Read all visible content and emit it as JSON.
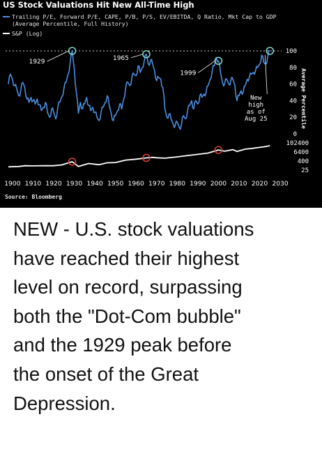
{
  "chart_data": {
    "type": "line",
    "title": "US Stock Valuations Hit New All-Time High",
    "legend": [
      {
        "label_line1": "Trailing P/E, Forward P/E, CAPE, P/B, P/S, EV/EBITDA, Q Ratio, Mkt Cap to GDP",
        "label_line2": "(Average Percentile, Full History)",
        "color": "#4a8fe0"
      },
      {
        "label_line1": "S&P (Log)",
        "label_line2": "",
        "color": "#ffffff"
      }
    ],
    "legend_position": "top-left",
    "x_ticks": [
      "1900",
      "1910",
      "1920",
      "1930",
      "1940",
      "1950",
      "1960",
      "1970",
      "1980",
      "1990",
      "2000",
      "2010",
      "2020",
      "2030"
    ],
    "xlim": [
      1898,
      2031
    ],
    "upper_ylim": [
      0,
      100
    ],
    "upper_yticks": [
      "100",
      "80",
      "60",
      "40",
      "20",
      "0"
    ],
    "upper_ylabel": "Average Percentile",
    "lower_yticks": [
      "102400",
      "6400",
      "400",
      "25"
    ],
    "lower_ylim": [
      10,
      200000
    ],
    "series": [
      {
        "name": "Average Percentile",
        "color": "#4a8fe0",
        "x": [
          1898,
          1899,
          1900,
          1901,
          1902,
          1903,
          1904,
          1905,
          1906,
          1907,
          1908,
          1909,
          1910,
          1911,
          1912,
          1913,
          1914,
          1915,
          1916,
          1917,
          1918,
          1919,
          1920,
          1921,
          1922,
          1923,
          1924,
          1925,
          1926,
          1927,
          1928,
          1929,
          1930,
          1931,
          1932,
          1933,
          1934,
          1935,
          1936,
          1937,
          1938,
          1939,
          1940,
          1941,
          1942,
          1943,
          1944,
          1945,
          1946,
          1947,
          1948,
          1949,
          1950,
          1951,
          1952,
          1953,
          1954,
          1955,
          1956,
          1957,
          1958,
          1959,
          1960,
          1961,
          1962,
          1963,
          1964,
          1965,
          1966,
          1967,
          1968,
          1969,
          1970,
          1971,
          1972,
          1973,
          1974,
          1975,
          1976,
          1977,
          1978,
          1979,
          1980,
          1981,
          1982,
          1983,
          1984,
          1985,
          1986,
          1987,
          1988,
          1989,
          1990,
          1991,
          1992,
          1993,
          1994,
          1995,
          1996,
          1997,
          1998,
          1999,
          2000,
          2001,
          2002,
          2003,
          2004,
          2005,
          2006,
          2007,
          2008,
          2009,
          2010,
          2011,
          2012,
          2013,
          2014,
          2015,
          2016,
          2017,
          2018,
          2019,
          2020,
          2021,
          2022,
          2023,
          2024,
          2025
        ],
        "values": [
          60,
          72,
          66,
          58,
          55,
          46,
          52,
          62,
          56,
          42,
          38,
          44,
          40,
          36,
          42,
          35,
          28,
          32,
          38,
          26,
          20,
          30,
          26,
          18,
          32,
          38,
          45,
          55,
          62,
          72,
          85,
          100,
          78,
          50,
          25,
          38,
          30,
          36,
          44,
          34,
          28,
          32,
          26,
          20,
          16,
          26,
          32,
          38,
          46,
          34,
          24,
          16,
          22,
          28,
          36,
          30,
          42,
          56,
          62,
          58,
          68,
          72,
          70,
          82,
          74,
          80,
          88,
          96,
          84,
          88,
          85,
          76,
          64,
          68,
          66,
          56,
          30,
          20,
          24,
          18,
          12,
          10,
          14,
          8,
          10,
          22,
          18,
          28,
          34,
          40,
          30,
          40,
          36,
          46,
          44,
          48,
          50,
          58,
          66,
          76,
          82,
          92,
          88,
          74,
          62,
          60,
          66,
          60,
          64,
          66,
          58,
          40,
          46,
          52,
          50,
          58,
          66,
          68,
          72,
          74,
          76,
          80,
          84,
          95,
          86,
          84,
          94,
          100
        ]
      },
      {
        "name": "S&P (Log)",
        "color": "#ffffff",
        "x": [
          1898,
          1903,
          1906,
          1910,
          1915,
          1920,
          1924,
          1929,
          1932,
          1937,
          1942,
          1946,
          1950,
          1955,
          1960,
          1965,
          1968,
          1970,
          1974,
          1980,
          1985,
          1990,
          1995,
          2000,
          2003,
          2007,
          2009,
          2013,
          2016,
          2020,
          2022,
          2025
        ],
        "values": [
          48,
          55,
          70,
          68,
          72,
          70,
          95,
          280,
          55,
          150,
          100,
          190,
          210,
          480,
          650,
          1000,
          1200,
          1050,
          900,
          1400,
          2200,
          3300,
          5200,
          14500,
          9500,
          16500,
          9000,
          19500,
          24000,
          35000,
          42000,
          62000
        ]
      }
    ],
    "annotations": [
      {
        "label": "1929",
        "year": 1929,
        "marker": "upper"
      },
      {
        "label": "1965",
        "year": 1965,
        "marker": "upper"
      },
      {
        "label": "1999",
        "year": 2000,
        "marker": "upper"
      },
      {
        "label": "New high as of Aug 25",
        "year": 2025,
        "marker": "upper"
      }
    ],
    "circle_colors": {
      "upper": "#7fd0c8",
      "lower": "#d63a3a"
    },
    "lower_circle_years": [
      1929,
      1965,
      2000
    ],
    "source": "Source: Bloomberg"
  },
  "caption": [
    "NEW - U.S. stock valuations",
    "have reached their highest",
    "level on record, surpassing",
    "both the \"Dot-Com bubble\"",
    "and the 1929 peak before",
    "the onset of the Great",
    "Depression."
  ]
}
